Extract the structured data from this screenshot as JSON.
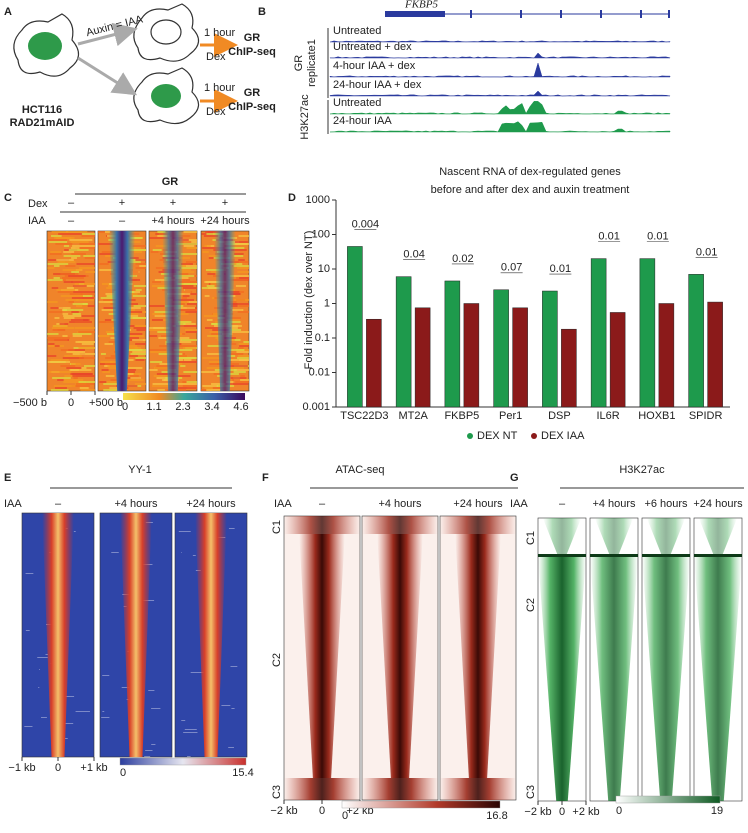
{
  "panel_a": {
    "letter": "A",
    "treatment": "Auxin = IAA",
    "arms": [
      {
        "time": "1 hour",
        "drug": "Dex",
        "assay": [
          "GR",
          "ChIP-seq"
        ]
      },
      {
        "time": "1 hour",
        "drug": "Dex",
        "assay": [
          "GR",
          "ChIP-seq"
        ]
      }
    ],
    "cell_line": [
      "HCT116",
      "RAD21mAID"
    ]
  },
  "panel_b": {
    "letter": "B",
    "gene": "FKBP5",
    "groups": [
      {
        "label": [
          "GR",
          "replicate1"
        ],
        "tracks": [
          "Untreated",
          "Untreated + dex",
          "4-hour IAA + dex",
          "24-hour IAA + dex"
        ]
      },
      {
        "label": [
          "H3K27ac"
        ],
        "tracks": [
          "Untreated",
          "24-hour IAA"
        ]
      }
    ]
  },
  "panel_c": {
    "letter": "C",
    "title": "GR",
    "row_labels": [
      "Dex",
      "IAA"
    ],
    "dex": [
      "–",
      "+",
      "+",
      "+"
    ],
    "iaa": [
      "–",
      "–",
      "+4 hours",
      "+24 hours"
    ],
    "x_labels": [
      "−500 b",
      "0",
      "+500 b"
    ],
    "colorbar": [
      "0",
      "1.1",
      "2.3",
      "3.4",
      "4.6"
    ]
  },
  "panel_d": {
    "letter": "D"
  },
  "chart_data": {
    "type": "bar",
    "title": [
      "Nascent RNA of dex-regulated genes",
      "before and after dex and auxin treatment"
    ],
    "ylabel": "Fold induction (dex over NT)",
    "log_scale": true,
    "ylim": [
      0.001,
      1000
    ],
    "yticks": [
      0.001,
      0.01,
      0.1,
      1,
      10,
      100,
      1000
    ],
    "categories": [
      "TSC22D3",
      "MT2A",
      "FKBP5",
      "Per1",
      "DSP",
      "IL6R",
      "HOXB1",
      "SPIDR"
    ],
    "series": [
      {
        "name": "DEX NT",
        "color": "#1e9a4c",
        "values": [
          45,
          6,
          4.5,
          2.5,
          2.3,
          20,
          20,
          7
        ]
      },
      {
        "name": "DEX IAA",
        "color": "#8b1a1a",
        "values": [
          0.35,
          0.75,
          1.0,
          0.75,
          0.18,
          0.55,
          1.0,
          1.1
        ]
      }
    ],
    "p_values": [
      "0.004",
      "0.04",
      "0.02",
      "0.07",
      "0.01",
      "0.01",
      "0.01",
      "0.01"
    ],
    "legend": "bottom"
  },
  "panel_e": {
    "letter": "E",
    "title": "YY-1",
    "row_label": "IAA",
    "columns": [
      "–",
      "+4 hours",
      "+24 hours"
    ],
    "x_labels": [
      "−1 kb",
      "0",
      "+1 kb"
    ],
    "colorbar": [
      "0",
      "15.4"
    ]
  },
  "panel_f": {
    "letter": "F",
    "title": "ATAC-seq",
    "row_label": "IAA",
    "columns": [
      "–",
      "+4 hours",
      "+24 hours"
    ],
    "clusters": [
      "C1",
      "C2",
      "C3"
    ],
    "x_labels": [
      "−2 kb",
      "0",
      "+2 kb"
    ],
    "colorbar": [
      "0",
      "16.8"
    ]
  },
  "panel_g": {
    "letter": "G",
    "title": "H3K27ac",
    "row_label": "IAA",
    "columns": [
      "–",
      "+4 hours",
      "+6 hours",
      "+24 hours"
    ],
    "clusters": [
      "C1",
      "C2",
      "C3"
    ],
    "x_labels": [
      "−2 kb",
      "0",
      "+2 kb"
    ],
    "colorbar": [
      "0",
      "19"
    ]
  }
}
